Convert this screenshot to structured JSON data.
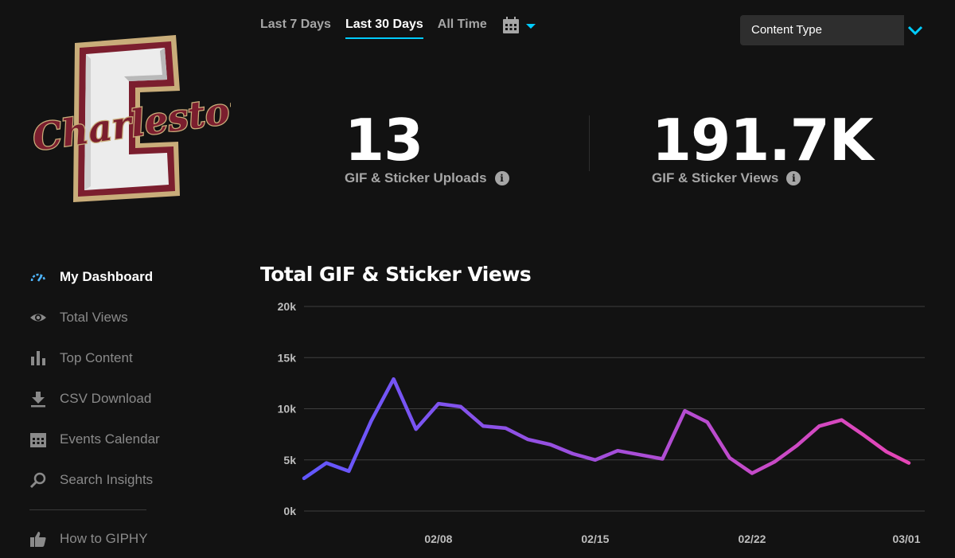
{
  "logo": {
    "text": "Charleston",
    "letter": "C"
  },
  "filters": {
    "ranges": [
      "Last 7 Days",
      "Last 30 Days",
      "All Time"
    ],
    "active_range": "Last 30 Days",
    "content_type_label": "Content Type"
  },
  "stats": {
    "uploads": {
      "value": "13",
      "label": "GIF & Sticker Uploads"
    },
    "views": {
      "value": "191.7K",
      "label": "GIF & Sticker Views"
    }
  },
  "nav": {
    "items": [
      {
        "label": "My Dashboard",
        "icon": "gauge-icon",
        "active": true
      },
      {
        "label": "Total Views",
        "icon": "eye-icon"
      },
      {
        "label": "Top Content",
        "icon": "bar-chart-icon"
      },
      {
        "label": "CSV Download",
        "icon": "download-icon"
      },
      {
        "label": "Events Calendar",
        "icon": "calendar-icon"
      },
      {
        "label": "Search Insights",
        "icon": "search-icon"
      }
    ],
    "help": {
      "label": "How to GIPHY",
      "icon": "thumbs-up-icon"
    }
  },
  "colors": {
    "accent": "#00ccff",
    "line_start": "#6157ff",
    "line_end": "#e646b6",
    "logo_maroon": "#7b1e2e",
    "logo_gold": "#c9ad7a"
  },
  "chart_data": {
    "type": "line",
    "title": "Total GIF & Sticker Views",
    "ylim": [
      0,
      20000
    ],
    "yticks": [
      "0k",
      "5k",
      "10k",
      "15k",
      "20k"
    ],
    "ytick_values": [
      0,
      5000,
      10000,
      15000,
      20000
    ],
    "xticks": [
      "02/08",
      "02/15",
      "02/22",
      "03/01"
    ],
    "x_start": "02/02",
    "x_end": "03/02",
    "grid": true,
    "series": [
      {
        "values": [
          3200,
          4700,
          3900,
          8800,
          12900,
          8000,
          10500,
          10200,
          8300,
          8100,
          7000,
          6500,
          5600,
          5000,
          5900,
          5500,
          5100,
          9800,
          8700,
          5200,
          3700,
          4800,
          6400,
          8300,
          8900,
          7400,
          5800,
          4700
        ]
      }
    ]
  }
}
